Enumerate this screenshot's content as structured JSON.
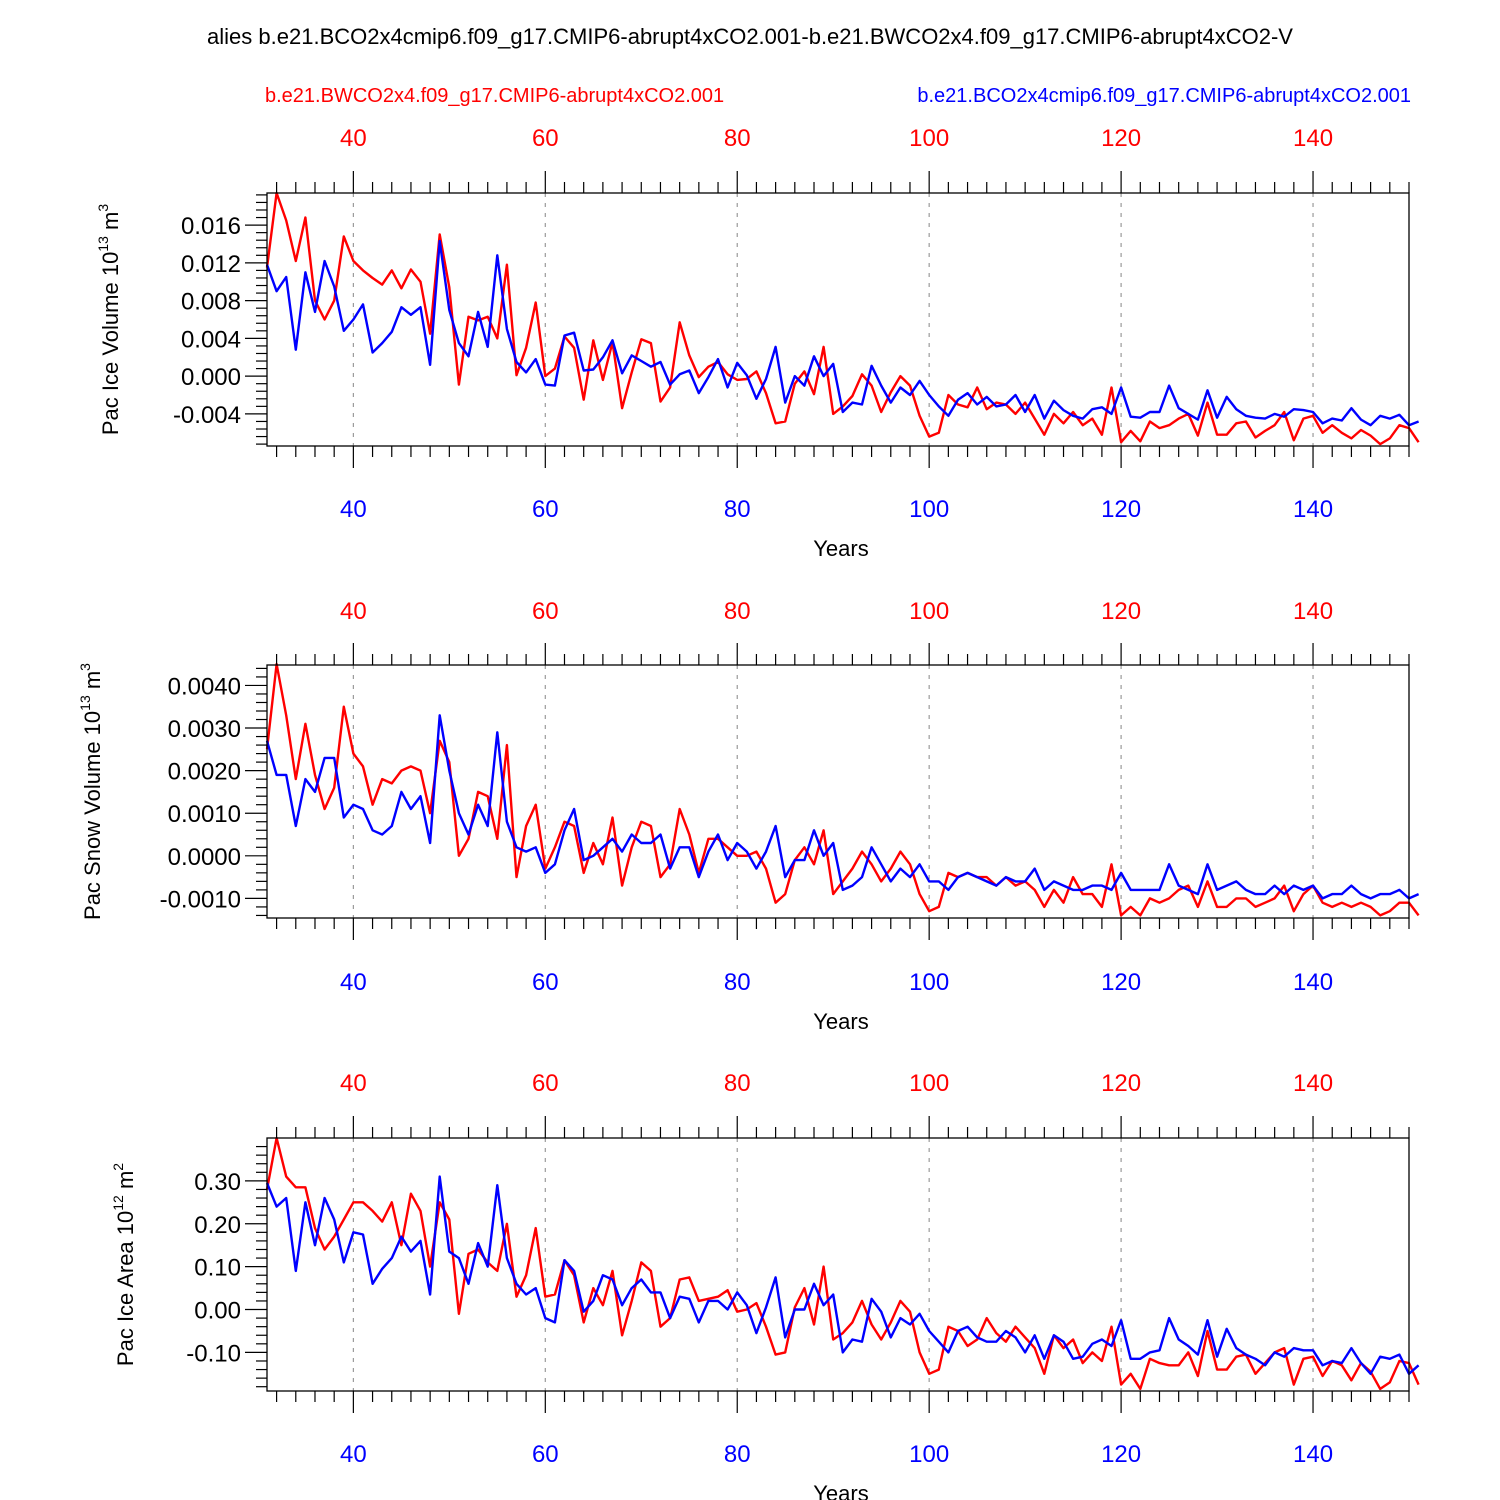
{
  "figure": {
    "title": "alies b.e21.BCO2x4cmip6.f09_g17.CMIP6-abrupt4xCO2.001-b.e21.BWCO2x4.f09_g17.CMIP6-abrupt4xCO2-V",
    "legend_red": "b.e21.BWCO2x4.f09_g17.CMIP6-abrupt4xCO2.001",
    "legend_blue": "b.e21.BCO2x4cmip6.f09_g17.CMIP6-abrupt4xCO2.001",
    "colors": {
      "red": "#ff0000",
      "blue": "#0000ff",
      "grid": "#9a9a9a",
      "axes": "#000000"
    }
  },
  "chart_data": [
    {
      "type": "line",
      "id": "ice-volume",
      "ylabel": {
        "main": "Pac Ice Volume 10",
        "exp": "13",
        "unit": " m",
        "unit_exp": "3"
      },
      "xlabel": "Years",
      "xlim": [
        31,
        150
      ],
      "ylim": [
        -0.0074,
        0.0194
      ],
      "yticks": [
        -0.004,
        0.0,
        0.004,
        0.008,
        0.012,
        0.016
      ],
      "ytick_labels": [
        "-0.004",
        "0.000",
        "0.004",
        "0.008",
        "0.012",
        "0.016"
      ],
      "xticks_top": [
        40,
        60,
        80,
        100,
        120,
        140
      ],
      "xtick_labels_top": [
        "40",
        "60",
        "80",
        "100",
        "120",
        "140"
      ],
      "xticks_bottom": [
        40,
        60,
        80,
        100,
        120,
        140
      ],
      "xtick_labels_bottom": [
        "40",
        "60",
        "80",
        "100",
        "120",
        "140"
      ],
      "x_start": 31,
      "series": [
        {
          "name": "b.e21.BWCO2x4.f09_g17.CMIP6-abrupt4xCO2.001",
          "color": "#ff0000",
          "values": [
            0.0115,
            0.0194,
            0.0165,
            0.0122,
            0.0168,
            0.008,
            0.006,
            0.008,
            0.0148,
            0.0122,
            0.0112,
            0.0104,
            0.0097,
            0.0112,
            0.0093,
            0.0113,
            0.01,
            0.0045,
            0.015,
            0.0094,
            -0.0009,
            0.0063,
            0.0059,
            0.0063,
            0.004,
            0.0118,
            0.0001,
            0.003,
            0.0078,
            0.0,
            0.0008,
            0.0042,
            0.003,
            -0.0025,
            0.0038,
            -0.0004,
            0.0036,
            -0.0034,
            0.0004,
            0.0039,
            0.0035,
            -0.0027,
            -0.0012,
            0.0057,
            0.0022,
            -0.0001,
            0.001,
            0.0015,
            0.0002,
            -0.0004,
            -0.0003,
            0.0005,
            -0.0018,
            -0.005,
            -0.0048,
            -0.0008,
            0.0005,
            -0.0019,
            0.0031,
            -0.004,
            -0.0032,
            -0.0021,
            0.0002,
            -0.001,
            -0.0038,
            -0.0017,
            0.0,
            -0.001,
            -0.0042,
            -0.0064,
            -0.006,
            -0.002,
            -0.003,
            -0.0033,
            -0.0012,
            -0.0035,
            -0.0028,
            -0.003,
            -0.004,
            -0.0028,
            -0.0045,
            -0.0062,
            -0.004,
            -0.005,
            -0.0038,
            -0.0052,
            -0.0045,
            -0.0062,
            -0.0012,
            -0.007,
            -0.0058,
            -0.0069,
            -0.0048,
            -0.0055,
            -0.0052,
            -0.0045,
            -0.004,
            -0.0063,
            -0.0028,
            -0.0062,
            -0.0062,
            -0.005,
            -0.0048,
            -0.0065,
            -0.0058,
            -0.0052,
            -0.0038,
            -0.0068,
            -0.0045,
            -0.0042,
            -0.006,
            -0.0052,
            -0.006,
            -0.0066,
            -0.0057,
            -0.0063,
            -0.0072,
            -0.0066,
            -0.0052,
            -0.0055,
            -0.007
          ]
        },
        {
          "name": "b.e21.BCO2x4cmip6.f09_g17.CMIP6-abrupt4xCO2.001",
          "color": "#0000ff",
          "values": [
            0.0118,
            0.009,
            0.0105,
            0.0028,
            0.011,
            0.0068,
            0.0122,
            0.0095,
            0.0048,
            0.006,
            0.0076,
            0.0025,
            0.0035,
            0.0047,
            0.0073,
            0.0065,
            0.0073,
            0.0012,
            0.0143,
            0.007,
            0.0035,
            0.0021,
            0.0068,
            0.0031,
            0.0128,
            0.005,
            0.0015,
            0.0004,
            0.0018,
            -0.0009,
            -0.001,
            0.0043,
            0.0046,
            0.0006,
            0.0007,
            0.002,
            0.0038,
            0.0003,
            0.0022,
            0.0016,
            0.001,
            0.0015,
            -0.0009,
            0.0002,
            0.0006,
            -0.0018,
            -0.0001,
            0.0018,
            -0.0012,
            0.0014,
            0.0001,
            -0.0024,
            -0.0003,
            0.0031,
            -0.0028,
            0.0,
            -0.001,
            0.0021,
            0.0,
            0.0013,
            -0.0038,
            -0.0028,
            -0.003,
            0.0011,
            -0.001,
            -0.0028,
            -0.0012,
            -0.002,
            -0.0005,
            -0.002,
            -0.0032,
            -0.0042,
            -0.0025,
            -0.0018,
            -0.003,
            -0.0022,
            -0.0032,
            -0.003,
            -0.002,
            -0.0038,
            -0.002,
            -0.0045,
            -0.0026,
            -0.0036,
            -0.0042,
            -0.0045,
            -0.0035,
            -0.0033,
            -0.004,
            -0.0012,
            -0.0043,
            -0.0044,
            -0.0038,
            -0.0038,
            -0.001,
            -0.0034,
            -0.004,
            -0.0046,
            -0.0015,
            -0.0044,
            -0.0022,
            -0.0035,
            -0.0042,
            -0.0044,
            -0.0045,
            -0.004,
            -0.0043,
            -0.0035,
            -0.0036,
            -0.0038,
            -0.005,
            -0.0045,
            -0.0047,
            -0.0034,
            -0.0046,
            -0.0052,
            -0.0042,
            -0.0045,
            -0.0041,
            -0.0052,
            -0.0048
          ]
        }
      ]
    },
    {
      "type": "line",
      "id": "snow-volume",
      "ylabel": {
        "main": "Pac Snow Volume 10",
        "exp": "13",
        "unit": " m",
        "unit_exp": "3"
      },
      "xlabel": "Years",
      "xlim": [
        31,
        150
      ],
      "ylim": [
        -0.00146,
        0.00448
      ],
      "yticks": [
        -0.001,
        0.0,
        0.001,
        0.002,
        0.003,
        0.004
      ],
      "ytick_labels": [
        "-0.0010",
        "0.0000",
        "0.0010",
        "0.0020",
        "0.0030",
        "0.0040"
      ],
      "xticks_top": [
        40,
        60,
        80,
        100,
        120,
        140
      ],
      "xtick_labels_top": [
        "40",
        "60",
        "80",
        "100",
        "120",
        "140"
      ],
      "xticks_bottom": [
        40,
        60,
        80,
        100,
        120,
        140
      ],
      "xtick_labels_bottom": [
        "40",
        "60",
        "80",
        "100",
        "120",
        "140"
      ],
      "x_start": 31,
      "series": [
        {
          "name": "b.e21.BWCO2x4.f09_g17.CMIP6-abrupt4xCO2.001",
          "color": "#ff0000",
          "values": [
            0.0025,
            0.0045,
            0.0033,
            0.0018,
            0.0031,
            0.0019,
            0.0011,
            0.0016,
            0.0035,
            0.0024,
            0.0021,
            0.0012,
            0.0018,
            0.0017,
            0.002,
            0.0021,
            0.002,
            0.001,
            0.0027,
            0.0022,
            0.0,
            0.0004,
            0.0015,
            0.0014,
            0.0004,
            0.0026,
            -0.0005,
            0.0007,
            0.0012,
            -0.0003,
            0.0002,
            0.0008,
            0.0007,
            -0.0004,
            0.0003,
            -0.0002,
            0.0009,
            -0.0007,
            0.0002,
            0.0008,
            0.0007,
            -0.0005,
            -0.0002,
            0.0011,
            0.0005,
            -0.0004,
            0.0004,
            0.0004,
            0.0002,
            0.0,
            0.0,
            0.0001,
            -0.0003,
            -0.0011,
            -0.0009,
            -0.0001,
            0.0002,
            -0.0002,
            0.0006,
            -0.0009,
            -0.0006,
            -0.0003,
            0.0001,
            -0.0002,
            -0.0006,
            -0.0003,
            0.0001,
            -0.0002,
            -0.0009,
            -0.0013,
            -0.0012,
            -0.0004,
            -0.0005,
            -0.0004,
            -0.0005,
            -0.0005,
            -0.0007,
            -0.0005,
            -0.0007,
            -0.0006,
            -0.0008,
            -0.0012,
            -0.0008,
            -0.0011,
            -0.0005,
            -0.0009,
            -0.0009,
            -0.0012,
            -0.0002,
            -0.0014,
            -0.0012,
            -0.0014,
            -0.001,
            -0.0011,
            -0.001,
            -0.0008,
            -0.0007,
            -0.0012,
            -0.0006,
            -0.0012,
            -0.0012,
            -0.001,
            -0.001,
            -0.0012,
            -0.0011,
            -0.001,
            -0.0007,
            -0.0013,
            -0.0009,
            -0.0007,
            -0.0011,
            -0.0012,
            -0.0011,
            -0.0012,
            -0.0011,
            -0.0012,
            -0.0014,
            -0.0013,
            -0.0011,
            -0.0011,
            -0.0014
          ]
        },
        {
          "name": "b.e21.BCO2x4cmip6.f09_g17.CMIP6-abrupt4xCO2.001",
          "color": "#0000ff",
          "values": [
            0.0027,
            0.0019,
            0.0019,
            0.0007,
            0.0018,
            0.0015,
            0.0023,
            0.0023,
            0.0009,
            0.0012,
            0.0011,
            0.0006,
            0.0005,
            0.0007,
            0.0015,
            0.0011,
            0.0014,
            0.0003,
            0.0033,
            0.002,
            0.001,
            0.0005,
            0.0012,
            0.0007,
            0.0029,
            0.0008,
            0.0002,
            0.0001,
            0.0002,
            -0.0004,
            -0.0002,
            0.0006,
            0.0011,
            -0.0001,
            0.0,
            0.0002,
            0.0004,
            0.0001,
            0.0005,
            0.0003,
            0.0003,
            0.0005,
            -0.0003,
            0.0002,
            0.0002,
            -0.0005,
            0.0001,
            0.0005,
            -0.0001,
            0.0003,
            0.0001,
            -0.0003,
            0.0001,
            0.0007,
            -0.0005,
            -0.0001,
            -0.0001,
            0.0006,
            0.0,
            0.0003,
            -0.0008,
            -0.0007,
            -0.0005,
            0.0002,
            -0.0002,
            -0.0006,
            -0.0003,
            -0.0005,
            -0.0002,
            -0.0006,
            -0.0006,
            -0.0008,
            -0.0005,
            -0.0004,
            -0.0005,
            -0.0006,
            -0.0007,
            -0.0005,
            -0.0006,
            -0.0006,
            -0.0003,
            -0.0008,
            -0.0006,
            -0.0007,
            -0.0008,
            -0.0008,
            -0.0007,
            -0.0007,
            -0.0008,
            -0.0004,
            -0.0008,
            -0.0008,
            -0.0008,
            -0.0008,
            -0.0002,
            -0.0007,
            -0.0008,
            -0.0009,
            -0.0002,
            -0.0008,
            -0.0007,
            -0.0006,
            -0.0008,
            -0.0009,
            -0.0009,
            -0.0007,
            -0.0009,
            -0.0007,
            -0.0008,
            -0.0007,
            -0.001,
            -0.0009,
            -0.0009,
            -0.0007,
            -0.0009,
            -0.001,
            -0.0009,
            -0.0009,
            -0.0008,
            -0.001,
            -0.0009
          ]
        }
      ]
    },
    {
      "type": "line",
      "id": "ice-area",
      "ylabel": {
        "main": "Pac Ice Area 10",
        "exp": "12",
        "unit": " m",
        "unit_exp": "2"
      },
      "xlabel": "Years",
      "xlim": [
        31,
        150
      ],
      "ylim": [
        -0.19,
        0.4
      ],
      "yticks": [
        -0.1,
        0.0,
        0.1,
        0.2,
        0.3
      ],
      "ytick_labels": [
        "-0.10",
        "0.00",
        "0.10",
        "0.20",
        "0.30"
      ],
      "xticks_top": [
        40,
        60,
        80,
        100,
        120,
        140
      ],
      "xtick_labels_top": [
        "40",
        "60",
        "80",
        "100",
        "120",
        "140"
      ],
      "xticks_bottom": [
        40,
        60,
        80,
        100,
        120,
        140
      ],
      "xtick_labels_bottom": [
        "40",
        "60",
        "80",
        "100",
        "120",
        "140"
      ],
      "x_start": 31,
      "series": [
        {
          "name": "b.e21.BWCO2x4.f09_g17.CMIP6-abrupt4xCO2.001",
          "color": "#ff0000",
          "values": [
            0.28,
            0.4,
            0.31,
            0.285,
            0.285,
            0.19,
            0.14,
            0.17,
            0.21,
            0.25,
            0.25,
            0.23,
            0.205,
            0.25,
            0.15,
            0.27,
            0.23,
            0.1,
            0.25,
            0.21,
            -0.01,
            0.13,
            0.14,
            0.11,
            0.09,
            0.2,
            0.03,
            0.08,
            0.19,
            0.03,
            0.035,
            0.115,
            0.08,
            -0.03,
            0.05,
            0.01,
            0.09,
            -0.06,
            0.02,
            0.11,
            0.09,
            -0.04,
            -0.02,
            0.07,
            0.075,
            0.02,
            0.025,
            0.03,
            0.045,
            -0.005,
            0.0,
            0.015,
            -0.04,
            -0.105,
            -0.1,
            0.005,
            0.05,
            -0.035,
            0.1,
            -0.07,
            -0.055,
            -0.03,
            0.02,
            -0.035,
            -0.07,
            -0.03,
            0.02,
            -0.005,
            -0.1,
            -0.15,
            -0.14,
            -0.04,
            -0.05,
            -0.085,
            -0.07,
            -0.02,
            -0.055,
            -0.075,
            -0.04,
            -0.065,
            -0.09,
            -0.15,
            -0.06,
            -0.09,
            -0.07,
            -0.125,
            -0.1,
            -0.12,
            -0.04,
            -0.175,
            -0.15,
            -0.185,
            -0.115,
            -0.125,
            -0.13,
            -0.13,
            -0.1,
            -0.155,
            -0.05,
            -0.14,
            -0.14,
            -0.11,
            -0.105,
            -0.15,
            -0.125,
            -0.1,
            -0.09,
            -0.175,
            -0.115,
            -0.11,
            -0.155,
            -0.12,
            -0.13,
            -0.165,
            -0.125,
            -0.145,
            -0.185,
            -0.17,
            -0.12,
            -0.125,
            -0.175
          ]
        },
        {
          "name": "b.e21.BCO2x4cmip6.f09_g17.CMIP6-abrupt4xCO2.001",
          "color": "#0000ff",
          "values": [
            0.295,
            0.24,
            0.26,
            0.09,
            0.25,
            0.15,
            0.26,
            0.21,
            0.11,
            0.18,
            0.175,
            0.06,
            0.095,
            0.12,
            0.17,
            0.135,
            0.16,
            0.035,
            0.31,
            0.135,
            0.12,
            0.06,
            0.155,
            0.1,
            0.29,
            0.12,
            0.06,
            0.035,
            0.05,
            -0.02,
            -0.03,
            0.115,
            0.09,
            -0.005,
            0.02,
            0.08,
            0.07,
            0.01,
            0.05,
            0.07,
            0.04,
            0.04,
            -0.02,
            0.03,
            0.025,
            -0.03,
            0.02,
            0.02,
            0.0,
            0.04,
            0.01,
            -0.055,
            0.005,
            0.075,
            -0.065,
            0.0,
            0.0,
            0.06,
            0.01,
            0.035,
            -0.1,
            -0.07,
            -0.075,
            0.025,
            -0.005,
            -0.065,
            -0.02,
            -0.035,
            -0.01,
            -0.05,
            -0.075,
            -0.1,
            -0.05,
            -0.04,
            -0.065,
            -0.075,
            -0.075,
            -0.05,
            -0.065,
            -0.1,
            -0.06,
            -0.115,
            -0.06,
            -0.075,
            -0.115,
            -0.11,
            -0.08,
            -0.07,
            -0.085,
            -0.025,
            -0.115,
            -0.115,
            -0.1,
            -0.095,
            -0.02,
            -0.07,
            -0.085,
            -0.105,
            -0.025,
            -0.11,
            -0.045,
            -0.09,
            -0.105,
            -0.115,
            -0.13,
            -0.1,
            -0.11,
            -0.09,
            -0.095,
            -0.095,
            -0.13,
            -0.12,
            -0.125,
            -0.09,
            -0.125,
            -0.15,
            -0.11,
            -0.115,
            -0.105,
            -0.15,
            -0.13
          ]
        }
      ]
    }
  ]
}
